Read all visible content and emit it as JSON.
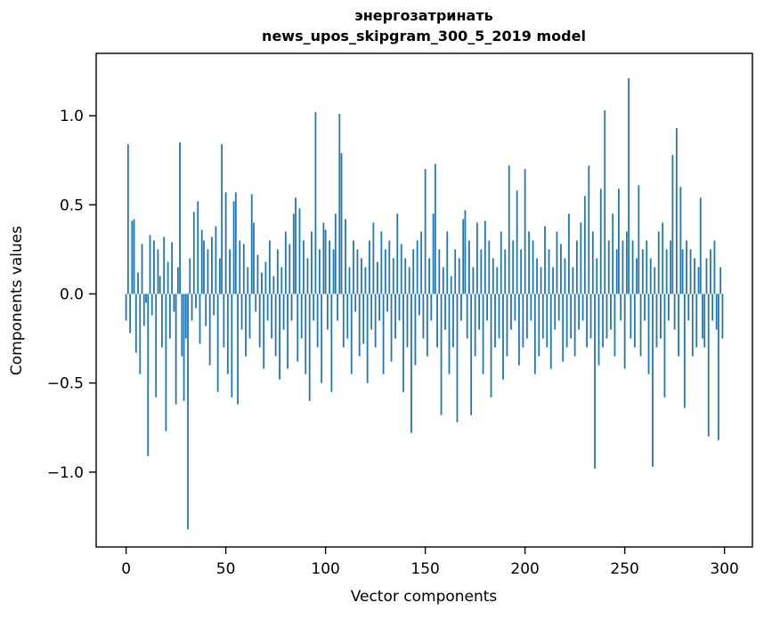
{
  "chart_data": {
    "type": "bar",
    "title": "энергозатринать",
    "subtitle": "news_upos_skipgram_300_5_2019 model",
    "xlabel": "Vector components",
    "ylabel": "Components values",
    "xlim": [
      -15,
      314
    ],
    "ylim": [
      -1.42,
      1.35
    ],
    "x_ticks": [
      {
        "v": 0,
        "label": "0"
      },
      {
        "v": 50,
        "label": "50"
      },
      {
        "v": 100,
        "label": "100"
      },
      {
        "v": 150,
        "label": "150"
      },
      {
        "v": 200,
        "label": "200"
      },
      {
        "v": 250,
        "label": "250"
      },
      {
        "v": 300,
        "label": "300"
      }
    ],
    "y_ticks": [
      {
        "v": -1.0,
        "label": "−1.0"
      },
      {
        "v": -0.5,
        "label": "−0.5"
      },
      {
        "v": 0.0,
        "label": "0.0"
      },
      {
        "v": 0.5,
        "label": "0.5"
      },
      {
        "v": 1.0,
        "label": "1.0"
      }
    ],
    "bar_color": "#1f77b4",
    "legend": "off",
    "grid": "off",
    "values": [
      -0.15,
      0.84,
      -0.22,
      0.41,
      0.42,
      -0.33,
      0.12,
      -0.45,
      0.28,
      -0.18,
      -0.05,
      -0.91,
      0.33,
      -0.12,
      0.3,
      -0.58,
      0.25,
      0.1,
      -0.3,
      0.32,
      -0.77,
      0.18,
      -0.25,
      0.29,
      -0.1,
      -0.62,
      0.15,
      0.85,
      -0.35,
      -0.6,
      -0.25,
      -1.32,
      0.2,
      -0.15,
      0.46,
      -0.08,
      0.52,
      -0.28,
      0.36,
      0.3,
      -0.18,
      0.25,
      -0.4,
      0.32,
      -0.12,
      0.38,
      -0.55,
      0.2,
      0.84,
      -0.3,
      0.57,
      -0.45,
      0.25,
      -0.58,
      0.52,
      0.57,
      -0.62,
      0.3,
      -0.2,
      0.28,
      -0.35,
      0.15,
      -0.25,
      0.56,
      0.4,
      -0.1,
      0.22,
      -0.3,
      0.12,
      -0.42,
      0.18,
      -0.15,
      0.3,
      -0.25,
      0.1,
      -0.35,
      0.25,
      -0.48,
      0.15,
      -0.2,
      0.35,
      -0.42,
      0.28,
      -0.15,
      0.45,
      0.54,
      -0.38,
      0.48,
      -0.25,
      0.3,
      -0.45,
      0.2,
      -0.6,
      0.35,
      -0.15,
      1.02,
      -0.3,
      0.25,
      -0.5,
      0.4,
      0.36,
      -0.2,
      0.3,
      -0.55,
      0.25,
      0.45,
      -0.15,
      1.01,
      0.79,
      -0.3,
      0.42,
      -0.25,
      0.15,
      -0.45,
      0.3,
      -0.1,
      0.25,
      -0.35,
      0.2,
      -0.28,
      0.15,
      -0.5,
      0.3,
      -0.2,
      0.4,
      -0.3,
      0.18,
      -0.15,
      0.35,
      -0.45,
      0.25,
      -0.1,
      0.3,
      -0.38,
      0.2,
      -0.25,
      0.45,
      -0.15,
      0.28,
      -0.55,
      0.2,
      -0.3,
      0.15,
      -0.78,
      0.25,
      -0.4,
      0.3,
      -0.12,
      0.35,
      -0.25,
      0.7,
      -0.35,
      0.2,
      -0.15,
      0.45,
      0.73,
      -0.3,
      0.25,
      -0.68,
      0.15,
      -0.2,
      0.35,
      -0.45,
      0.1,
      -0.3,
      0.25,
      -0.72,
      0.2,
      -0.15,
      0.42,
      0.47,
      -0.25,
      0.3,
      -0.68,
      0.15,
      -0.35,
      0.4,
      -0.2,
      0.25,
      -0.45,
      0.41,
      -0.15,
      0.3,
      -0.58,
      0.2,
      -0.3,
      0.15,
      -0.25,
      0.35,
      -0.48,
      0.25,
      -0.35,
      0.72,
      -0.2,
      0.3,
      -0.15,
      0.58,
      -0.4,
      0.25,
      -0.3,
      0.7,
      -0.25,
      0.35,
      -0.15,
      0.3,
      -0.45,
      0.2,
      -0.35,
      0.15,
      -0.25,
      0.38,
      -0.3,
      0.25,
      -0.42,
      0.15,
      -0.2,
      0.35,
      -0.15,
      0.28,
      -0.38,
      0.2,
      -0.3,
      0.45,
      -0.25,
      0.15,
      -0.35,
      0.3,
      -0.2,
      0.4,
      -0.15,
      0.55,
      -0.3,
      0.72,
      -0.25,
      0.35,
      -0.98,
      0.2,
      -0.4,
      0.59,
      -0.3,
      1.03,
      -0.25,
      0.3,
      -0.2,
      0.45,
      -0.35,
      0.25,
      0.59,
      -0.15,
      0.3,
      -0.42,
      0.35,
      1.21,
      -0.25,
      0.3,
      -0.3,
      0.2,
      0.61,
      -0.35,
      0.25,
      -0.15,
      0.3,
      -0.45,
      0.2,
      -0.97,
      0.15,
      -0.3,
      0.35,
      -0.25,
      0.4,
      -0.58,
      0.25,
      -0.15,
      0.3,
      0.78,
      -0.2,
      0.93,
      -0.35,
      0.6,
      0.25,
      -0.64,
      0.3,
      -0.15,
      0.25,
      -0.35,
      0.2,
      -0.3,
      0.15,
      0.54,
      -0.25,
      -0.3,
      0.2,
      -0.8,
      0.25,
      -0.15,
      0.3,
      -0.2,
      -0.82,
      0.15,
      -0.25
    ]
  }
}
